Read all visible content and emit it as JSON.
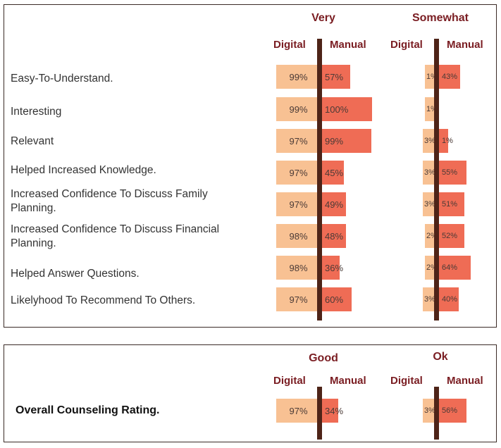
{
  "colors": {
    "digital": "#f8c193",
    "manual": "#ef6c55",
    "divider": "#4e2418",
    "header": "#7a1d22"
  },
  "chart_data": [
    {
      "type": "bar",
      "title": "",
      "groups": [
        {
          "name": "Very",
          "subheaders": [
            "Digital",
            "Manual"
          ]
        },
        {
          "name": "Somewhat",
          "subheaders": [
            "Digital",
            "Manual"
          ]
        }
      ],
      "categories": [
        "Easy-To-Understand.",
        "Interesting",
        "Relevant",
        "Helped Increased Knowledge.",
        "Increased Confidence To Discuss Family Planning.",
        "Increased  Confidence To Discuss Financial Planning.",
        "Helped Answer Questions.",
        "Likelyhood To Recommend To Others."
      ],
      "series": [
        {
          "name": "Very - Digital",
          "values": [
            99,
            99,
            97,
            97,
            97,
            98,
            98,
            97
          ],
          "labels": [
            "99%",
            "99%",
            "97%",
            "97%",
            "97%",
            "98%",
            "98%",
            "97%"
          ]
        },
        {
          "name": "Very - Manual",
          "values": [
            57,
            100,
            99,
            45,
            49,
            48,
            36,
            60
          ],
          "labels": [
            "57%",
            "100%",
            "99%",
            "45%",
            "49%",
            "48%",
            "36%",
            "60%"
          ]
        },
        {
          "name": "Somewhat - Digital",
          "values": [
            1,
            1,
            3,
            3,
            3,
            2,
            2,
            3
          ],
          "labels": [
            "1%",
            "1%",
            "3%",
            "3%",
            "3%",
            "2%",
            "2%",
            "3%"
          ]
        },
        {
          "name": "Somewhat - Manual",
          "values": [
            43,
            0,
            1,
            55,
            51,
            52,
            64,
            40
          ],
          "labels": [
            "43%",
            "",
            "1%",
            "55%",
            "51%",
            "52%",
            "64%",
            "40%"
          ]
        }
      ]
    },
    {
      "type": "bar",
      "title": "",
      "groups": [
        {
          "name": "Good",
          "subheaders": [
            "Digital",
            "Manual"
          ]
        },
        {
          "name": "Ok",
          "subheaders": [
            "Digital",
            "Manual"
          ]
        }
      ],
      "categories": [
        "Overall Counseling Rating."
      ],
      "series": [
        {
          "name": "Good - Digital",
          "values": [
            97
          ],
          "labels": [
            "97%"
          ]
        },
        {
          "name": "Good - Manual",
          "values": [
            34
          ],
          "labels": [
            "34%"
          ]
        },
        {
          "name": "Ok - Digital",
          "values": [
            3
          ],
          "labels": [
            "3%"
          ]
        },
        {
          "name": "Ok - Manual",
          "values": [
            56
          ],
          "labels": [
            "56%"
          ]
        }
      ]
    }
  ]
}
